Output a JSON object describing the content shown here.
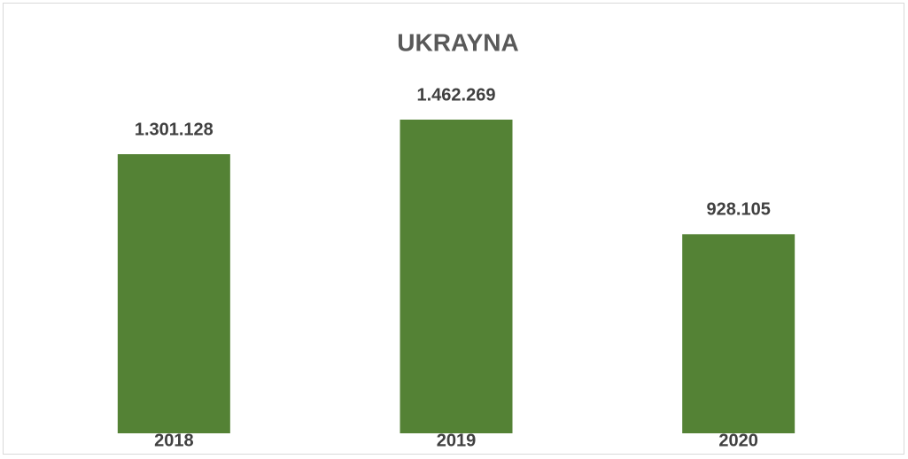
{
  "chart_data": {
    "type": "bar",
    "title": "UKRAYNA",
    "categories": [
      "2018",
      "2019",
      "2020"
    ],
    "values": [
      1301128,
      1462269,
      928105
    ],
    "value_labels": [
      "1.301.128",
      "1.462.269",
      "928.105"
    ],
    "color": "#548235"
  }
}
